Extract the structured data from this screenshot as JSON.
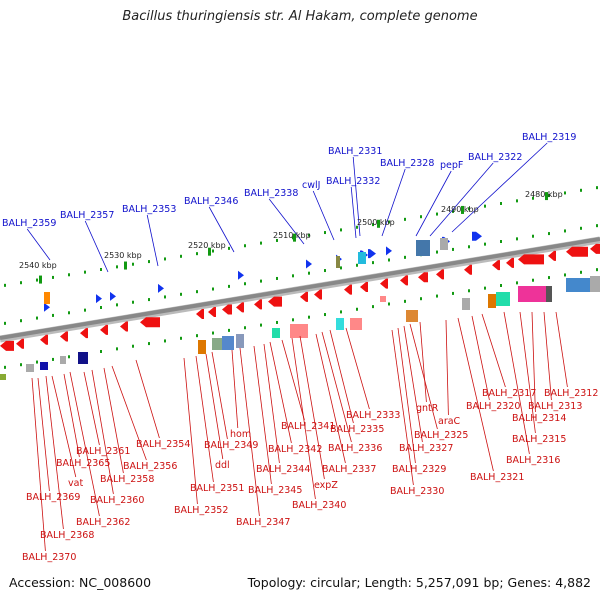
{
  "title": "Bacillus thuringiensis str. Al Hakam, complete genome",
  "footer": {
    "accession": "Accession: NC_008600",
    "summary": "Topology: circular; Length: 5,257,091 bp; Genes: 4,882"
  },
  "colors": {
    "forward_gene": "#1133ee",
    "reverse_gene": "#ee1111",
    "backbone": "#888888",
    "tick": "#119911",
    "forward_label": "#1111cc",
    "reverse_label": "#cc1111",
    "scale_label": "#222222"
  },
  "scale_ticks": [
    {
      "label": "2540 kbp"
    },
    {
      "label": "2530 kbp"
    },
    {
      "label": "2520 kbp"
    },
    {
      "label": "2510 kbp"
    },
    {
      "label": "2500 kbp"
    },
    {
      "label": "2490 kbp"
    },
    {
      "label": "2480 kbp"
    }
  ],
  "forward_labels": [
    "BALH_2359",
    "BALH_2357",
    "BALH_2353",
    "BALH_2346",
    "BALH_2338",
    "cwlJ",
    "BALH_2331",
    "BALH_2332",
    "BALH_2328",
    "pepF",
    "BALH_2322",
    "BALH_2319"
  ],
  "reverse_labels": [
    "BALH_2370",
    "BALH_2369",
    "BALH_2368",
    "vat",
    "BALH_2365",
    "BALH_2362",
    "BALH_2361",
    "BALH_2360",
    "BALH_2358",
    "BALH_2356",
    "BALH_2354",
    "BALH_2352",
    "BALH_2351",
    "ddl",
    "BALH_2349",
    "hom",
    "BALH_2347",
    "BALH_2345",
    "BALH_2344",
    "BALH_2342",
    "BALH_2341",
    "BALH_2340",
    "expZ",
    "BALH_2337",
    "BALH_2336",
    "BALH_2335",
    "BALH_2333",
    "BALH_2330",
    "BALH_2329",
    "BALH_2327",
    "BALH_2325",
    "gntR",
    "araC",
    "BALH_2321",
    "BALH_2320",
    "BALH_2317",
    "BALH_2316",
    "BALH_2315",
    "BALH_2314",
    "BALH_2313",
    "BALH_2312"
  ]
}
